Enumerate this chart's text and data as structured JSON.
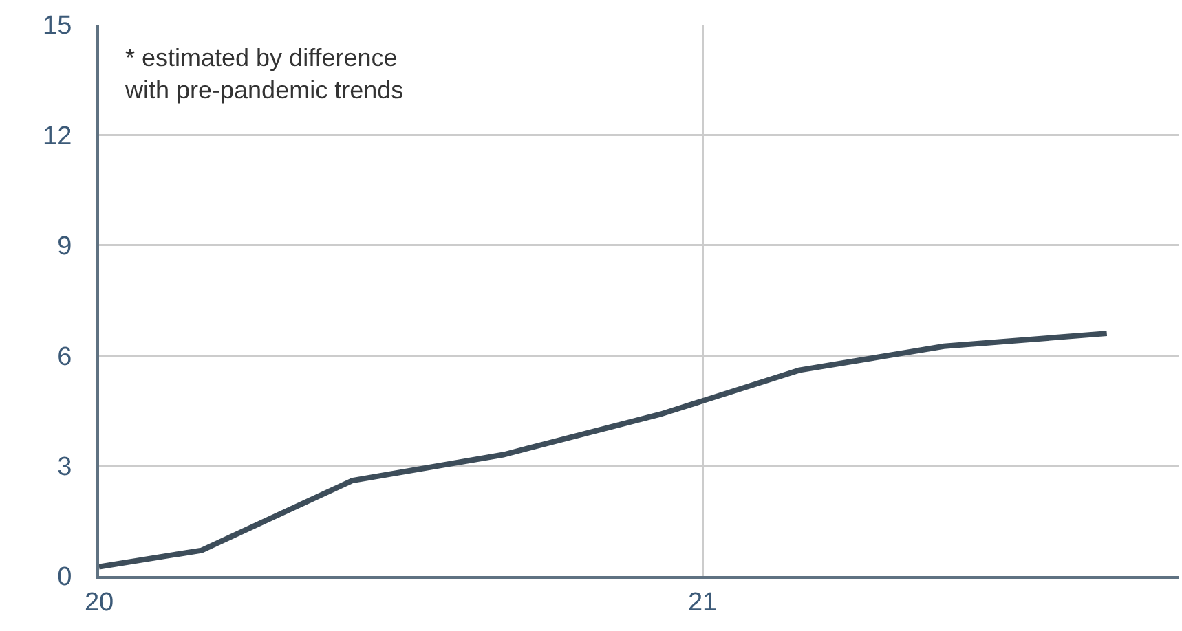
{
  "chart_data": {
    "type": "line",
    "x": [
      20,
      20.17,
      20.42,
      20.67,
      20.93,
      21.16,
      21.4,
      21.67
    ],
    "series": [
      {
        "color": "#3d4d5a",
        "values": [
          0.25,
          0.7,
          2.6,
          3.3,
          4.4,
          5.6,
          6.25,
          6.6
        ]
      }
    ],
    "xlim": [
      20,
      21.79
    ],
    "xticks": [
      20,
      21
    ],
    "ylim": [
      0,
      15
    ],
    "yticks": [
      0,
      3,
      6,
      9,
      12,
      15
    ],
    "grid": true,
    "marker": "none",
    "line_style": "solid",
    "annotations": [
      "* estimated by difference\nwith pre-pandemic trends"
    ]
  }
}
